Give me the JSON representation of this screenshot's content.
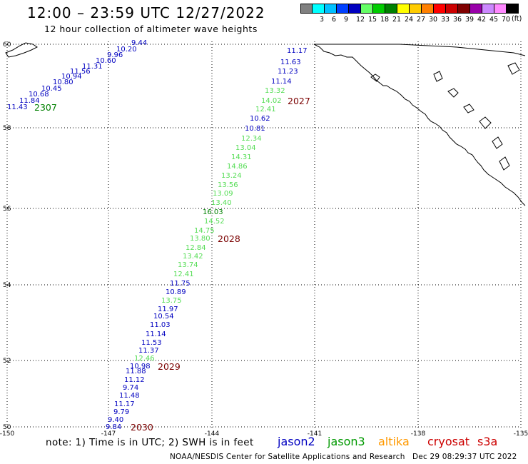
{
  "header": {
    "title": "12:00 – 23:59 UTC 12/27/2022",
    "subtitle": "12 hour collection of altimeter wave heights"
  },
  "colorbar": {
    "unit": "(ft)",
    "bins": [
      {
        "label": "",
        "color": "#808080"
      },
      {
        "label": "3",
        "color": "#00ffff"
      },
      {
        "label": "6",
        "color": "#00c0ff"
      },
      {
        "label": "9",
        "color": "#0040ff"
      },
      {
        "label": "12",
        "color": "#0000c0"
      },
      {
        "label": "15",
        "color": "#66ff66"
      },
      {
        "label": "18",
        "color": "#00cc00"
      },
      {
        "label": "21",
        "color": "#008000"
      },
      {
        "label": "24",
        "color": "#ffff00"
      },
      {
        "label": "27",
        "color": "#ffcc00"
      },
      {
        "label": "30",
        "color": "#ff8000"
      },
      {
        "label": "33",
        "color": "#ff0000"
      },
      {
        "label": "36",
        "color": "#cc0000"
      },
      {
        "label": "39",
        "color": "#800000"
      },
      {
        "label": "42",
        "color": "#9900aa"
      },
      {
        "label": "45",
        "color": "#cc88ff"
      },
      {
        "label": "70",
        "color": "#ff88ff"
      },
      {
        "label": "",
        "color": "#000000"
      }
    ]
  },
  "map": {
    "lon_ticks": [
      "-150",
      "-147",
      "-144",
      "-141",
      "-138",
      "-135"
    ],
    "lat_ticks": [
      "50",
      "52",
      "54",
      "56",
      "58",
      "60"
    ],
    "colors": {
      "blue": "#0000c0",
      "green": "#55dd55",
      "darkgreen": "#008000",
      "time": "#7a0000",
      "coast": "#000000",
      "grid": "#000000"
    },
    "track_times": [
      {
        "text": "2307",
        "color": "darkgreen"
      },
      {
        "text": "2027",
        "color": "time"
      },
      {
        "text": "2028",
        "color": "time"
      },
      {
        "text": "2029",
        "color": "time"
      },
      {
        "text": "2030",
        "color": "time"
      }
    ],
    "nw_track": [
      {
        "text": "9.44",
        "color": "blue"
      },
      {
        "text": "10.20",
        "color": "blue"
      },
      {
        "text": "9.96",
        "color": "blue"
      },
      {
        "text": "10.60",
        "color": "blue"
      },
      {
        "text": "11.31",
        "color": "blue"
      },
      {
        "text": "11.56",
        "color": "blue"
      },
      {
        "text": "10.94",
        "color": "blue"
      },
      {
        "text": "10.80",
        "color": "blue"
      },
      {
        "text": "10.45",
        "color": "blue"
      },
      {
        "text": "10.68",
        "color": "blue"
      },
      {
        "text": "11.84",
        "color": "blue"
      },
      {
        "text": "11.43",
        "color": "blue"
      }
    ],
    "main_track": [
      {
        "text": "11.17",
        "color": "blue"
      },
      {
        "text": "11.63",
        "color": "blue"
      },
      {
        "text": "11.23",
        "color": "blue"
      },
      {
        "text": "11.14",
        "color": "blue"
      },
      {
        "text": "13.32",
        "color": "green"
      },
      {
        "text": "14.02",
        "color": "green"
      },
      {
        "text": "12.41",
        "color": "green"
      },
      {
        "text": "10.62",
        "color": "blue"
      },
      {
        "text": "10.81",
        "color": "blue"
      },
      {
        "text": "12.34",
        "color": "green"
      },
      {
        "text": "13.04",
        "color": "green"
      },
      {
        "text": "14.31",
        "color": "green"
      },
      {
        "text": "14.86",
        "color": "green"
      },
      {
        "text": "13.24",
        "color": "green"
      },
      {
        "text": "13.56",
        "color": "green"
      },
      {
        "text": "13.09",
        "color": "green"
      },
      {
        "text": "13.40",
        "color": "green"
      },
      {
        "text": "16.03",
        "color": "darkgreen"
      },
      {
        "text": "14.52",
        "color": "green"
      },
      {
        "text": "14.75",
        "color": "green"
      },
      {
        "text": "13.80",
        "color": "green"
      },
      {
        "text": "12.84",
        "color": "green"
      },
      {
        "text": "13.42",
        "color": "green"
      },
      {
        "text": "13.74",
        "color": "green"
      },
      {
        "text": "12.41",
        "color": "green"
      },
      {
        "text": "11.75",
        "color": "blue"
      },
      {
        "text": "10.89",
        "color": "blue"
      },
      {
        "text": "13.75",
        "color": "green"
      },
      {
        "text": "11.97",
        "color": "blue"
      },
      {
        "text": "10.54",
        "color": "blue"
      },
      {
        "text": "11.03",
        "color": "blue"
      },
      {
        "text": "11.14",
        "color": "blue"
      },
      {
        "text": "11.53",
        "color": "blue"
      },
      {
        "text": "11.37",
        "color": "blue"
      },
      {
        "text": "12.46",
        "color": "green"
      },
      {
        "text": "10.98",
        "color": "blue"
      },
      {
        "text": "11.88",
        "color": "blue"
      },
      {
        "text": "11.12",
        "color": "blue"
      },
      {
        "text": "9.74",
        "color": "blue"
      },
      {
        "text": "11.48",
        "color": "blue"
      },
      {
        "text": "11.17",
        "color": "blue"
      },
      {
        "text": "9.79",
        "color": "blue"
      },
      {
        "text": "9.40",
        "color": "blue"
      },
      {
        "text": "9.84",
        "color": "blue"
      }
    ]
  },
  "footer": {
    "note": "note: 1) Time is in UTC; 2) SWH is in feet",
    "satellites": [
      {
        "name": "jason2",
        "color": "#0000c0"
      },
      {
        "name": "jason3",
        "color": "#009900"
      },
      {
        "name": "altika",
        "color": "#ff9900"
      },
      {
        "name": "cryosat",
        "color": "#cc0000"
      },
      {
        "name": "s3a",
        "color": "#cc0000"
      }
    ],
    "credit": "NOAA/NESDIS Center for Satellite Applications and Research",
    "timestamp": "Dec 29 08:29:37 UTC 2022"
  }
}
